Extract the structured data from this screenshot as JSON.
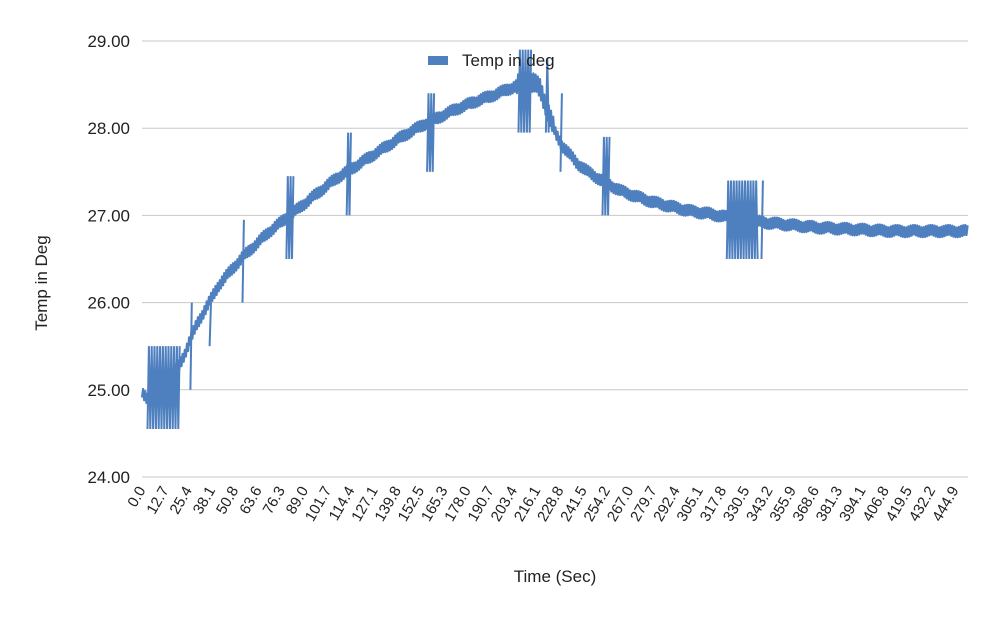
{
  "chart_data": {
    "type": "line",
    "title": "",
    "xlabel": "Time (Sec)",
    "ylabel": "Temp in Deg",
    "ylim": [
      24.0,
      29.0
    ],
    "xlim": [
      0,
      452
    ],
    "y_ticks": [
      "24.00",
      "25.00",
      "26.00",
      "27.00",
      "28.00",
      "29.00"
    ],
    "x_ticks": [
      "0.0",
      "12.7",
      "25.4",
      "38.1",
      "50.8",
      "63.6",
      "76.3",
      "89.0",
      "101.7",
      "114.4",
      "127.1",
      "139.8",
      "152.5",
      "165.3",
      "178.0",
      "190.7",
      "203.4",
      "216.1",
      "228.8",
      "241.5",
      "254.2",
      "267.0",
      "279.7",
      "292.4",
      "305.1",
      "317.8",
      "330.5",
      "343.2",
      "355.9",
      "368.6",
      "381.3",
      "394.1",
      "406.8",
      "419.5",
      "432.2",
      "444.9"
    ],
    "grid": true,
    "legend_position": "top",
    "series": [
      {
        "name": "Temp in deg",
        "color": "#4e7fbf",
        "points": [
          [
            0.0,
            24.95
          ],
          [
            3.0,
            24.9
          ],
          [
            6.0,
            24.95
          ],
          [
            10.0,
            25.0
          ],
          [
            14.0,
            25.05
          ],
          [
            18.0,
            25.2
          ],
          [
            22.0,
            25.35
          ],
          [
            26.0,
            25.55
          ],
          [
            30.0,
            25.75
          ],
          [
            34.0,
            25.9
          ],
          [
            38.0,
            26.05
          ],
          [
            42.0,
            26.2
          ],
          [
            46.0,
            26.3
          ],
          [
            50.0,
            26.4
          ],
          [
            55.0,
            26.52
          ],
          [
            60.0,
            26.62
          ],
          [
            65.0,
            26.72
          ],
          [
            70.0,
            26.82
          ],
          [
            76.0,
            26.92
          ],
          [
            82.0,
            27.02
          ],
          [
            88.0,
            27.12
          ],
          [
            94.0,
            27.22
          ],
          [
            100.0,
            27.32
          ],
          [
            106.0,
            27.42
          ],
          [
            112.0,
            27.5
          ],
          [
            118.0,
            27.58
          ],
          [
            124.0,
            27.66
          ],
          [
            130.0,
            27.74
          ],
          [
            136.0,
            27.82
          ],
          [
            142.0,
            27.9
          ],
          [
            148.0,
            27.97
          ],
          [
            154.0,
            28.04
          ],
          [
            160.0,
            28.1
          ],
          [
            166.0,
            28.16
          ],
          [
            172.0,
            28.22
          ],
          [
            178.0,
            28.27
          ],
          [
            184.0,
            28.32
          ],
          [
            190.0,
            28.36
          ],
          [
            196.0,
            28.41
          ],
          [
            202.0,
            28.46
          ],
          [
            206.0,
            28.5
          ],
          [
            210.0,
            28.53
          ],
          [
            214.0,
            28.52
          ],
          [
            218.0,
            28.45
          ],
          [
            222.0,
            28.2
          ],
          [
            226.0,
            27.95
          ],
          [
            230.0,
            27.8
          ],
          [
            234.0,
            27.7
          ],
          [
            238.0,
            27.6
          ],
          [
            244.0,
            27.5
          ],
          [
            250.0,
            27.42
          ],
          [
            256.0,
            27.35
          ],
          [
            262.0,
            27.28
          ],
          [
            270.0,
            27.22
          ],
          [
            280.0,
            27.15
          ],
          [
            290.0,
            27.1
          ],
          [
            300.0,
            27.05
          ],
          [
            310.0,
            27.02
          ],
          [
            320.0,
            26.98
          ],
          [
            330.0,
            26.95
          ],
          [
            340.0,
            26.92
          ],
          [
            350.0,
            26.9
          ],
          [
            360.0,
            26.88
          ],
          [
            370.0,
            26.86
          ],
          [
            380.0,
            26.85
          ],
          [
            390.0,
            26.84
          ],
          [
            400.0,
            26.83
          ],
          [
            410.0,
            26.82
          ],
          [
            420.0,
            26.82
          ],
          [
            430.0,
            26.82
          ],
          [
            440.0,
            26.82
          ],
          [
            452.0,
            26.82
          ]
        ],
        "bursts": [
          {
            "x0": 3.0,
            "x1": 21.0,
            "ymin": 24.55,
            "ymax": 25.5
          },
          {
            "x0": 26.5,
            "x1": 27.5,
            "ymin": 25.0,
            "ymax": 26.0
          },
          {
            "x0": 37.0,
            "x1": 38.5,
            "ymin": 25.5,
            "ymax": 26.0
          },
          {
            "x0": 55.0,
            "x1": 56.5,
            "ymin": 26.0,
            "ymax": 26.95
          },
          {
            "x0": 79.0,
            "x1": 83.0,
            "ymin": 26.5,
            "ymax": 27.45
          },
          {
            "x0": 112.0,
            "x1": 115.0,
            "ymin": 27.0,
            "ymax": 27.95
          },
          {
            "x0": 156.0,
            "x1": 160.0,
            "ymin": 27.5,
            "ymax": 28.4
          },
          {
            "x0": 206.0,
            "x1": 213.0,
            "ymin": 27.95,
            "ymax": 28.9
          },
          {
            "x0": 221.0,
            "x1": 223.0,
            "ymin": 27.95,
            "ymax": 28.8
          },
          {
            "x0": 229.0,
            "x1": 230.5,
            "ymin": 27.5,
            "ymax": 28.4
          },
          {
            "x0": 252.0,
            "x1": 256.0,
            "ymin": 27.0,
            "ymax": 27.9
          },
          {
            "x0": 320.0,
            "x1": 337.0,
            "ymin": 26.5,
            "ymax": 27.4
          },
          {
            "x0": 339.0,
            "x1": 340.5,
            "ymin": 26.5,
            "ymax": 27.4
          }
        ]
      }
    ]
  }
}
